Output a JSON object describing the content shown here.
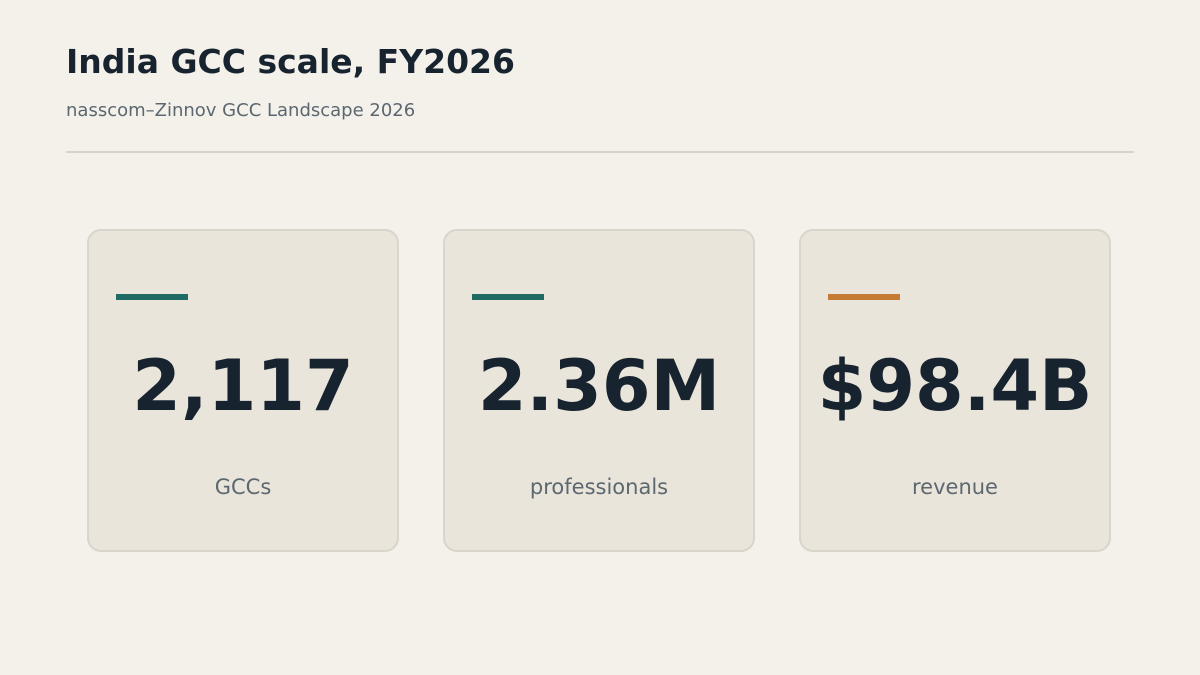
{
  "header": {
    "title": "India GCC scale, FY2026",
    "subtitle": "nasscom–Zinnov GCC Landscape 2026"
  },
  "stats": [
    {
      "value": "2,117",
      "label": "GCCs",
      "accent_color": "#1f6b64"
    },
    {
      "value": "2.36M",
      "label": "professionals",
      "accent_color": "#1f6b64"
    },
    {
      "value": "$98.4B",
      "label": "revenue",
      "accent_color": "#c57a35"
    }
  ],
  "colors": {
    "background": "#f4f1eb",
    "card_background": "#e9e5db",
    "text_primary": "#17232f",
    "text_secondary": "#5c6770"
  }
}
